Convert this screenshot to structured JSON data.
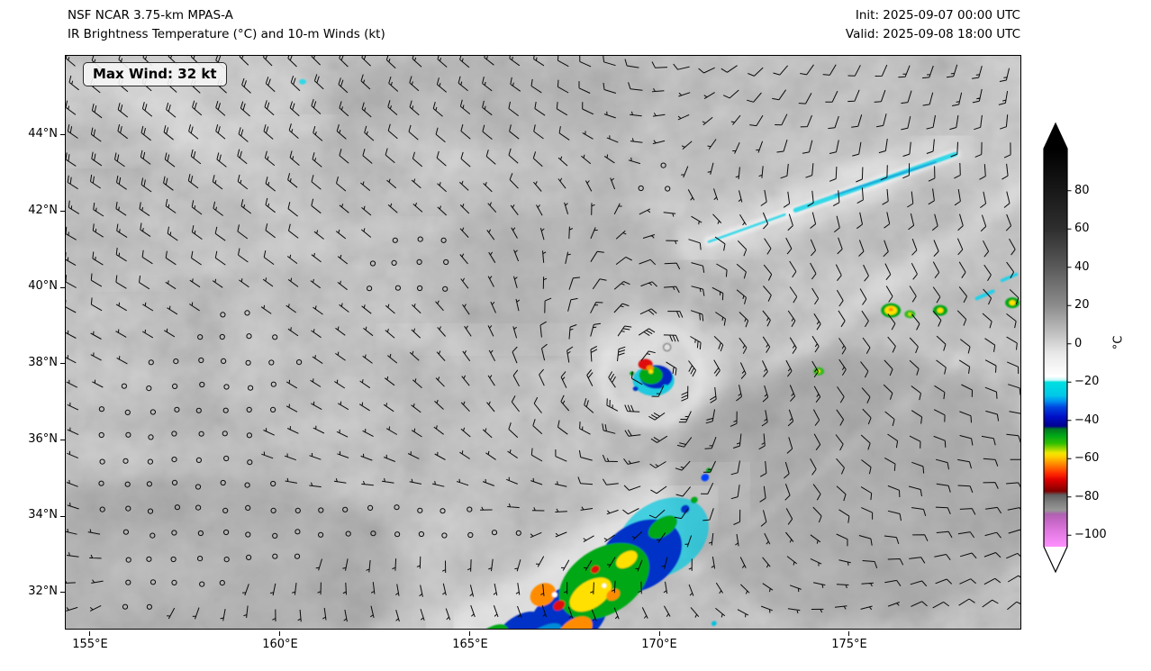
{
  "header": {
    "title_line1": "NSF NCAR 3.75-km MPAS-A",
    "title_line2": "IR Brightness Temperature (°C) and 10-m Winds (kt)",
    "init_time": "Init: 2025-09-07 00:00 UTC",
    "valid_time": "Valid: 2025-09-08 18:00 UTC"
  },
  "map": {
    "max_wind_label": "Max Wind: 32 kt",
    "y_tick_labels": [
      "44°N",
      "42°N",
      "40°N",
      "38°N",
      "36°N",
      "34°N",
      "32°N"
    ],
    "x_tick_labels": [
      "155°E",
      "160°E",
      "165°E",
      "170°E",
      "175°E"
    ]
  },
  "colorbar": {
    "unit": "°C",
    "tick_labels": [
      "80",
      "60",
      "40",
      "20",
      "0",
      "−20",
      "−40",
      "−60",
      "−80",
      "−100"
    ],
    "vmax": 102,
    "vmin": -106,
    "top_arrow_color": "#000000",
    "bottom_arrow_color": "#ffffff",
    "stops": [
      {
        "v": 102,
        "c": "#000000"
      },
      {
        "v": 60,
        "c": "#2e2e2e"
      },
      {
        "v": 40,
        "c": "#5a5a5a"
      },
      {
        "v": 20,
        "c": "#8c8c8c"
      },
      {
        "v": 5,
        "c": "#c2c2c2"
      },
      {
        "v": -5,
        "c": "#e8e8e8"
      },
      {
        "v": -17,
        "c": "#ffffff"
      },
      {
        "v": -19,
        "c": "#c0f8f8"
      },
      {
        "v": -20,
        "c": "#00e0e0"
      },
      {
        "v": -27,
        "c": "#00c8e8"
      },
      {
        "v": -30,
        "c": "#0090f0"
      },
      {
        "v": -33,
        "c": "#0048e0"
      },
      {
        "v": -38,
        "c": "#0010c8"
      },
      {
        "v": -43,
        "c": "#000090"
      },
      {
        "v": -44.5,
        "c": "#007820"
      },
      {
        "v": -48,
        "c": "#00a818"
      },
      {
        "v": -52,
        "c": "#30c000"
      },
      {
        "v": -55,
        "c": "#a0d800"
      },
      {
        "v": -57,
        "c": "#f0e800"
      },
      {
        "v": -59,
        "c": "#ffd000"
      },
      {
        "v": -62,
        "c": "#ff9800"
      },
      {
        "v": -65,
        "c": "#ff6000"
      },
      {
        "v": -68,
        "c": "#ff2800"
      },
      {
        "v": -71,
        "c": "#e00000"
      },
      {
        "v": -74,
        "c": "#b00000"
      },
      {
        "v": -77,
        "c": "#800000"
      },
      {
        "v": -79,
        "c": "#606060"
      },
      {
        "v": -83,
        "c": "#808080"
      },
      {
        "v": -87,
        "c": "#989898"
      },
      {
        "v": -89,
        "c": "#b060b0"
      },
      {
        "v": -93,
        "c": "#c868c8"
      },
      {
        "v": -98,
        "c": "#e078e0"
      },
      {
        "v": -106,
        "c": "#ff90ff"
      }
    ]
  },
  "chart_data": {
    "type": "heatmap",
    "subtype": "satellite-IR-map-with-wind-barbs",
    "title": "IR Brightness Temperature (°C) and 10-m Winds (kt)",
    "model": "NSF NCAR 3.75-km MPAS-A",
    "init": "2025-09-07 00:00 UTC",
    "valid": "2025-09-08 18:00 UTC",
    "x_axis": {
      "tick_labels": [
        "155°E",
        "160°E",
        "165°E",
        "170°E",
        "175°E"
      ],
      "ticks_deg_e": [
        155,
        160,
        165,
        170,
        175
      ],
      "range_deg_e": [
        154.36,
        179.56
      ]
    },
    "y_axis": {
      "tick_labels": [
        "44°N",
        "42°N",
        "40°N",
        "38°N",
        "36°N",
        "34°N",
        "32°N"
      ],
      "ticks_deg_n": [
        44,
        42,
        40,
        38,
        36,
        34,
        32
      ],
      "range_deg_n": [
        31.0,
        46.08
      ]
    },
    "colorbar": {
      "label": "°C",
      "tick_values": [
        80,
        60,
        40,
        20,
        0,
        -20,
        -40,
        -60,
        -80,
        -100
      ],
      "value_range": [
        102,
        -106
      ]
    },
    "max_wind_kt": 32,
    "wind_barb_units": "kt",
    "cyclone": {
      "lon_e": 169.8,
      "lat_n": 37.7,
      "description": "compact cyclone, spiral gray banding, cold convective core"
    },
    "background_field": "mostly 0 to -15 C gray low/mid cloud over ocean",
    "features": [
      {
        "name": "cyclone-cold-core",
        "lon_e": 169.8,
        "lat_n": 37.7,
        "min_cloud_top_c": -70
      },
      {
        "name": "convective-band",
        "lon_e": 168.0,
        "lat_n": 32.2,
        "min_cloud_top_c": -75,
        "extent": "166.5-171E, 31-33N"
      },
      {
        "name": "cirrus-streak",
        "from": [
          171.3,
          41.2
        ],
        "to": [
          177.8,
          43.5
        ],
        "min_cloud_top_c": -30
      },
      {
        "name": "cell",
        "lon_e": 176.1,
        "lat_n": 39.4,
        "min_cloud_top_c": -60
      },
      {
        "name": "cell",
        "lon_e": 176.6,
        "lat_n": 39.3,
        "min_cloud_top_c": -50
      },
      {
        "name": "cell",
        "lon_e": 177.4,
        "lat_n": 39.4,
        "min_cloud_top_c": -55
      },
      {
        "name": "cell",
        "lon_e": 179.3,
        "lat_n": 39.6,
        "min_cloud_top_c": -55
      },
      {
        "name": "cell",
        "lon_e": 174.2,
        "lat_n": 37.8,
        "min_cloud_top_c": -50
      },
      {
        "name": "cirrus-fleck",
        "lon_e": 160.6,
        "lat_n": 45.4,
        "min_cloud_top_c": -25
      },
      {
        "name": "cirrus-dashes",
        "lon_e": 178.6,
        "lat_n": 39.9,
        "min_cloud_top_c": -30
      }
    ]
  }
}
